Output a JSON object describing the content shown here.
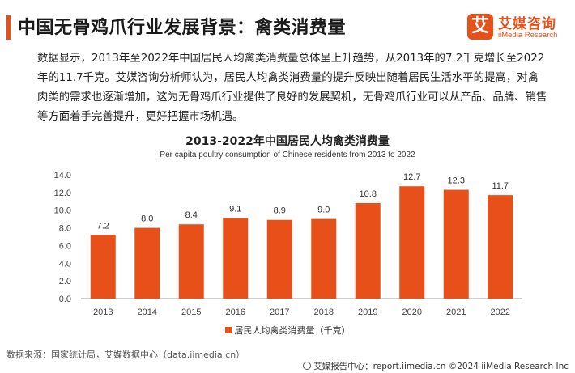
{
  "header": {
    "title": "中国无骨鸡爪行业发展背景：禽类消费量"
  },
  "logo": {
    "mark": "艾",
    "name": "艾媒咨询",
    "sub": "iiMedia Research"
  },
  "description": "数据显示，2013年至2022年中国居民人均禽类消费量总体呈上升趋势，从2013年的7.2千克增长至2022年的11.7千克。艾媒咨询分析师认为，居民人均禽类消费量的提升反映出随着居民生活水平的提高，对禽肉类的需求也逐渐增加，这为无骨鸡爪行业提供了良好的发展契机，无骨鸡爪行业可以从产品、品牌、销售等方面着手完善提升，更好把握市场机遇。",
  "chart_data": {
    "type": "bar",
    "title": "2013-2022年中国居民人均禽类消费量",
    "subtitle": "Per capita poultry consumption of Chinese residents from 2013 to 2022",
    "categories": [
      "2013",
      "2014",
      "2015",
      "2016",
      "2017",
      "2018",
      "2019",
      "2020",
      "2021",
      "2022"
    ],
    "series": [
      {
        "name": "居民人均禽类消费量（千克）",
        "values": [
          7.2,
          8.0,
          8.4,
          9.1,
          8.9,
          9.0,
          10.8,
          12.7,
          12.3,
          11.7
        ]
      }
    ],
    "data_labels": [
      "7.2",
      "8.0",
      "8.4",
      "9.1",
      "8.9",
      "9.0",
      "10.8",
      "12.7",
      "12.3",
      "11.7"
    ],
    "ylim": [
      0,
      14
    ],
    "yticks": [
      "0.0",
      "2.0",
      "4.0",
      "6.0",
      "8.0",
      "10.0",
      "12.0",
      "14.0"
    ],
    "grid": false,
    "legend_position": "bottom",
    "bar_color": "#e8501a"
  },
  "legend": {
    "label": "居民人均禽类消费量（千克）"
  },
  "source": "数据来源：国家统计局，艾媒数据中心（data.iimedia.cn）",
  "footer": "艾媒报告中心：report.iimedia.cn  ©2024  iiMedia Research  Inc"
}
